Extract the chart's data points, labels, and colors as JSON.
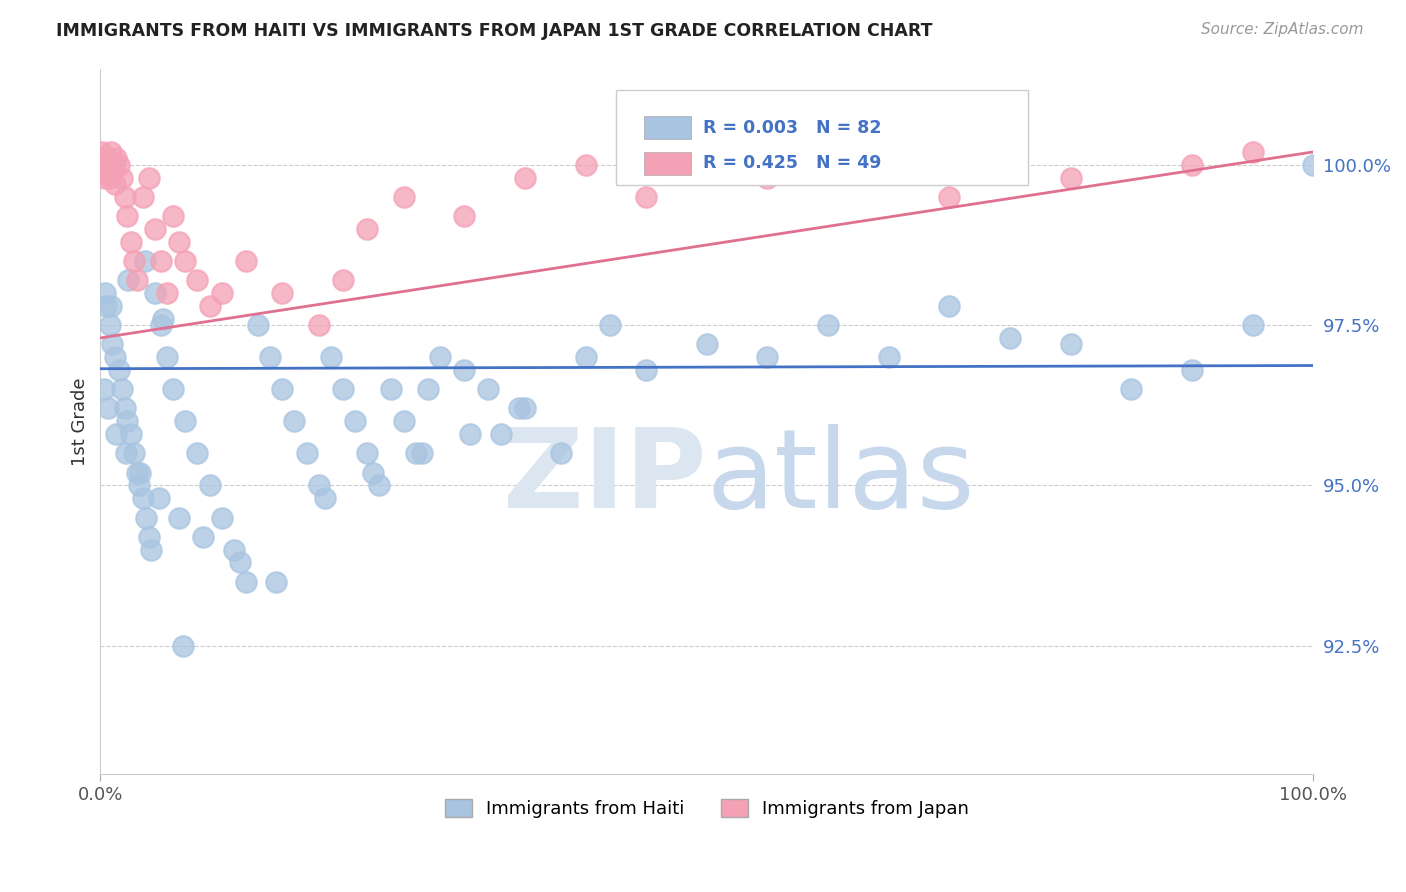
{
  "title": "IMMIGRANTS FROM HAITI VS IMMIGRANTS FROM JAPAN 1ST GRADE CORRELATION CHART",
  "source": "Source: ZipAtlas.com",
  "ylabel": "1st Grade",
  "legend_labels": [
    "Immigrants from Haiti",
    "Immigrants from Japan"
  ],
  "blue_color": "#a8c4e0",
  "pink_color": "#f4a0b5",
  "blue_line_color": "#4472c4",
  "pink_line_color": "#e07090",
  "blue_r": 0.003,
  "pink_r": 0.425,
  "blue_n": 82,
  "pink_n": 49,
  "ylim_min": 90.5,
  "ylim_max": 101.5,
  "xlim_min": 0,
  "xlim_max": 100,
  "y_ticks": [
    92.5,
    95.0,
    97.5,
    100.0
  ],
  "x_ticks": [
    0,
    100
  ],
  "blue_line_y_at_x0": 96.82,
  "blue_line_y_at_x100": 96.87,
  "pink_line_y_at_x0": 97.3,
  "pink_line_y_at_x100": 100.2,
  "haiti_x": [
    0.5,
    0.8,
    1.0,
    1.2,
    1.5,
    1.8,
    2.0,
    2.2,
    2.5,
    2.8,
    3.0,
    3.2,
    3.5,
    3.8,
    4.0,
    4.2,
    4.5,
    5.0,
    5.5,
    6.0,
    7.0,
    8.0,
    9.0,
    10.0,
    11.0,
    12.0,
    13.0,
    14.0,
    15.0,
    16.0,
    17.0,
    18.0,
    19.0,
    20.0,
    21.0,
    22.0,
    23.0,
    24.0,
    25.0,
    26.0,
    27.0,
    28.0,
    30.0,
    32.0,
    33.0,
    35.0,
    38.0,
    40.0,
    42.0,
    45.0,
    50.0,
    55.0,
    60.0,
    65.0,
    70.0,
    75.0,
    80.0,
    85.0,
    90.0,
    95.0,
    100.0,
    0.3,
    0.6,
    1.3,
    2.1,
    3.3,
    4.8,
    6.5,
    8.5,
    11.5,
    14.5,
    18.5,
    22.5,
    26.5,
    30.5,
    34.5,
    0.4,
    0.9,
    2.3,
    3.7,
    5.2,
    6.8
  ],
  "haiti_y": [
    97.8,
    97.5,
    97.2,
    97.0,
    96.8,
    96.5,
    96.2,
    96.0,
    95.8,
    95.5,
    95.2,
    95.0,
    94.8,
    94.5,
    94.2,
    94.0,
    98.0,
    97.5,
    97.0,
    96.5,
    96.0,
    95.5,
    95.0,
    94.5,
    94.0,
    93.5,
    97.5,
    97.0,
    96.5,
    96.0,
    95.5,
    95.0,
    97.0,
    96.5,
    96.0,
    95.5,
    95.0,
    96.5,
    96.0,
    95.5,
    96.5,
    97.0,
    96.8,
    96.5,
    95.8,
    96.2,
    95.5,
    97.0,
    97.5,
    96.8,
    97.2,
    97.0,
    97.5,
    97.0,
    97.8,
    97.3,
    97.2,
    96.5,
    96.8,
    97.5,
    100.0,
    96.5,
    96.2,
    95.8,
    95.5,
    95.2,
    94.8,
    94.5,
    94.2,
    93.8,
    93.5,
    94.8,
    95.2,
    95.5,
    95.8,
    96.2,
    98.0,
    97.8,
    98.2,
    98.5,
    97.6,
    92.5
  ],
  "japan_x": [
    0.1,
    0.2,
    0.3,
    0.4,
    0.5,
    0.6,
    0.7,
    0.8,
    0.9,
    1.0,
    1.1,
    1.2,
    1.3,
    1.5,
    1.8,
    2.0,
    2.2,
    2.5,
    2.8,
    3.0,
    3.5,
    4.0,
    4.5,
    5.0,
    5.5,
    6.0,
    6.5,
    7.0,
    8.0,
    9.0,
    10.0,
    12.0,
    15.0,
    18.0,
    20.0,
    22.0,
    25.0,
    30.0,
    35.0,
    40.0,
    45.0,
    50.0,
    55.0,
    60.0,
    70.0,
    75.0,
    80.0,
    90.0,
    95.0
  ],
  "japan_y": [
    100.2,
    100.1,
    100.0,
    99.8,
    100.1,
    99.9,
    100.0,
    99.8,
    100.2,
    99.9,
    100.0,
    99.7,
    100.1,
    100.0,
    99.8,
    99.5,
    99.2,
    98.8,
    98.5,
    98.2,
    99.5,
    99.8,
    99.0,
    98.5,
    98.0,
    99.2,
    98.8,
    98.5,
    98.2,
    97.8,
    98.0,
    98.5,
    98.0,
    97.5,
    98.2,
    99.0,
    99.5,
    99.2,
    99.8,
    100.0,
    99.5,
    100.2,
    99.8,
    100.0,
    99.5,
    100.1,
    99.8,
    100.0,
    100.2
  ]
}
